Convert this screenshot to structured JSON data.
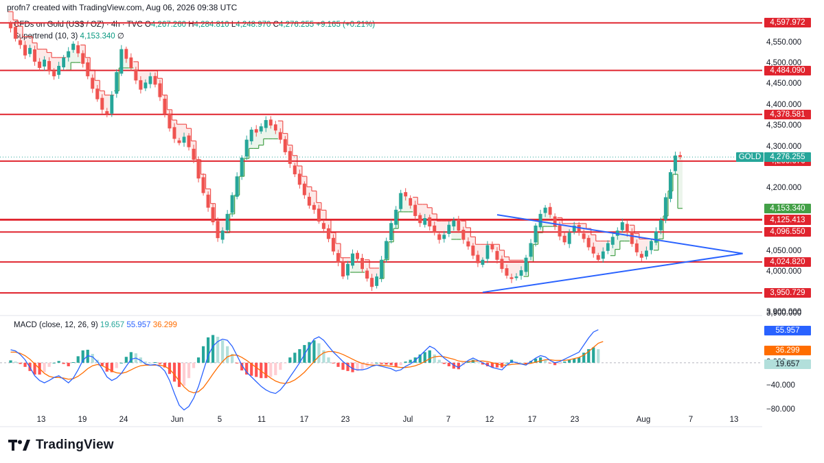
{
  "header": {
    "created_line": "profn7 created with TradingView.com, Aug 06, 2026 09:38 UTC",
    "symbol": "CFDs on Gold (US$ / OZ) · 4h · TVC",
    "o_label": "O",
    "o_val": "4,267.260",
    "h_label": "H",
    "h_val": "4,284.810",
    "l_label": "L",
    "l_val": "4,248.970",
    "c_label": "C",
    "c_val": "4,276.255",
    "change": "+9.165 (+0.21%)",
    "supertrend_label": "Supertrend (10, 3)",
    "supertrend_val": "4,153.340",
    "supertrend_flag": "∅"
  },
  "macd_legend": {
    "label": "MACD (close, 12, 26, 9)",
    "hist": "19.657",
    "macd": "55.957",
    "signal": "36.299"
  },
  "logo": {
    "text": "TradingView"
  },
  "colors": {
    "bull": "#26a69a",
    "bear": "#ef5350",
    "level": "#e0242e",
    "trendline": "#2962ff",
    "macd": "#2962ff",
    "signal": "#ff6d00",
    "supertrend_up": "#43a047",
    "supertrend_down": "#ef5350"
  },
  "chart_data": [
    {
      "type": "candlestick",
      "symbol_tag": "GOLD",
      "last_price": 4276.255,
      "last_price_label": "4,276.255",
      "ylim": [
        3900,
        4620
      ],
      "y_ticks": [
        3900,
        4000,
        4050,
        4200,
        4300,
        4350,
        4400,
        4450,
        4500,
        4550
      ],
      "y_tick_labels": [
        "3,900.000",
        "4,000.000",
        "4,050.000",
        "4,200.000",
        "4,300.000",
        "4,350.000",
        "4,400.000",
        "4,450.000",
        "4,500.000",
        "4,550.000"
      ],
      "x_tick_labels": [
        "13",
        "19",
        "24",
        "Jun",
        "5",
        "11",
        "17",
        "23",
        "Jul",
        "7",
        "12",
        "17",
        "23",
        "Aug",
        "7",
        "13"
      ],
      "series_close": [
        4585,
        4560,
        4545,
        4520,
        4538,
        4505,
        4490,
        4510,
        4482,
        4470,
        4495,
        4515,
        4530,
        4548,
        4525,
        4500,
        4470,
        4440,
        4415,
        4390,
        4380,
        4425,
        4480,
        4535,
        4512,
        4490,
        4460,
        4438,
        4455,
        4470,
        4450,
        4420,
        4380,
        4345,
        4320,
        4310,
        4325,
        4300,
        4270,
        4225,
        4190,
        4155,
        4120,
        4082,
        4100,
        4140,
        4185,
        4230,
        4275,
        4318,
        4342,
        4335,
        4350,
        4365,
        4352,
        4340,
        4318,
        4288,
        4260,
        4235,
        4210,
        4185,
        4160,
        4150,
        4122,
        4104,
        4080,
        4050,
        4024,
        3990,
        4020,
        4045,
        4032,
        4008,
        3985,
        3965,
        3990,
        4030,
        4075,
        4118,
        4150,
        4190,
        4182,
        4160,
        4135,
        4118,
        4130,
        4110,
        4095,
        4078,
        4090,
        4114,
        4124,
        4100,
        4078,
        4062,
        4040,
        4022,
        4030,
        4065,
        4055,
        4030,
        4008,
        3992,
        3984,
        3990,
        4005,
        4035,
        4070,
        4112,
        4140,
        4155,
        4138,
        4110,
        4086,
        4072,
        4095,
        4112,
        4097,
        4080,
        4060,
        4045,
        4030,
        4050,
        4070,
        4085,
        4100,
        4120,
        4095,
        4068,
        4048,
        4035,
        4052,
        4075,
        4098,
        4125,
        4180,
        4240,
        4280,
        4276.255
      ],
      "supertrend": {
        "label": "Supertrend (10, 3)",
        "last_value": 4153.34,
        "last_value_label": "4,153.340"
      },
      "levels": [
        {
          "value": 4597.972,
          "label": "4,597.972"
        },
        {
          "value": 4484.09,
          "label": "4,484.090"
        },
        {
          "value": 4378.581,
          "label": "4,378.581"
        },
        {
          "value": 4266.676,
          "label": "4,266.676"
        },
        {
          "value": 4126.817,
          "label": "4,126.817"
        },
        {
          "value": 4125.413,
          "label": "4,125.413"
        },
        {
          "value": 4096.55,
          "label": "4,096.550"
        },
        {
          "value": 4024.82,
          "label": "4,024.820"
        },
        {
          "value": 3950.729,
          "label": "3,950.729"
        }
      ],
      "triangle": {
        "upper": {
          "from_bar": 101,
          "from": 4138,
          "to_bar": 152,
          "to": 4045
        },
        "lower": {
          "from_bar": 98,
          "from": 3952,
          "to_bar": 152,
          "to": 4045
        }
      }
    },
    {
      "type": "macd",
      "label": "MACD (close, 12, 26, 9)",
      "ylim": [
        -85,
        80
      ],
      "y_ticks": [
        0,
        -40,
        -80
      ],
      "y_tick_labels": [
        "0.000",
        "−40.000",
        "−80.000"
      ],
      "top_label": "3,900.000",
      "last": {
        "macd": 55.957,
        "signal": 36.299,
        "histogram": 19.657
      },
      "series": [
        {
          "name": "MACD",
          "values": [
            22,
            20,
            14,
            5,
            -8,
            -22,
            -30,
            -34,
            -30,
            -25,
            -22,
            -28,
            -34,
            -26,
            -12,
            4,
            12,
            10,
            2,
            -10,
            -24,
            -30,
            -26,
            -18,
            -6,
            6,
            8,
            4,
            -2,
            -4,
            -3,
            -6,
            -14,
            -30,
            -52,
            -72,
            -80,
            -74,
            -60,
            -40,
            -14,
            12,
            28,
            36,
            40,
            38,
            28,
            12,
            -4,
            -16,
            -24,
            -32,
            -40,
            -46,
            -50,
            -52,
            -46,
            -36,
            -24,
            -12,
            0,
            14,
            28,
            40,
            44,
            38,
            28,
            18,
            10,
            2,
            -4,
            -10,
            -12,
            -12,
            -10,
            -6,
            -4,
            -6,
            -8,
            -10,
            -14,
            -12,
            -6,
            -2,
            4,
            12,
            20,
            28,
            24,
            16,
            8,
            2,
            -4,
            -8,
            -2,
            4,
            8,
            4,
            0,
            -4,
            -8,
            -10,
            -12,
            -4,
            2,
            0,
            -2,
            -4,
            2,
            8,
            12,
            10,
            4,
            0,
            2,
            6,
            10,
            14,
            18,
            30,
            42,
            52,
            56
          ]
        },
        {
          "name": "Signal",
          "values": [
            18,
            18,
            16,
            12,
            6,
            -2,
            -10,
            -18,
            -23,
            -25,
            -25,
            -26,
            -28,
            -27,
            -23,
            -17,
            -10,
            -5,
            -3,
            -5,
            -9,
            -14,
            -17,
            -18,
            -16,
            -12,
            -8,
            -5,
            -4,
            -4,
            -4,
            -4,
            -6,
            -11,
            -20,
            -31,
            -41,
            -48,
            -51,
            -49,
            -42,
            -31,
            -19,
            -8,
            2,
            10,
            13,
            13,
            9,
            4,
            -2,
            -8,
            -14,
            -20,
            -26,
            -31,
            -34,
            -35,
            -33,
            -29,
            -23,
            -16,
            -7,
            2,
            11,
            17,
            19,
            19,
            17,
            14,
            10,
            6,
            2,
            -1,
            -3,
            -4,
            -4,
            -4,
            -5,
            -6,
            -7,
            -8,
            -8,
            -7,
            -5,
            -2,
            2,
            7,
            10,
            11,
            10,
            8,
            6,
            3,
            2,
            2,
            3,
            3,
            3,
            2,
            0,
            -2,
            -4,
            -4,
            -3,
            -2,
            -2,
            -2,
            -1,
            1,
            3,
            5,
            5,
            4,
            4,
            4,
            5,
            7,
            9,
            13,
            19,
            26,
            33,
            36
          ]
        }
      ]
    }
  ]
}
